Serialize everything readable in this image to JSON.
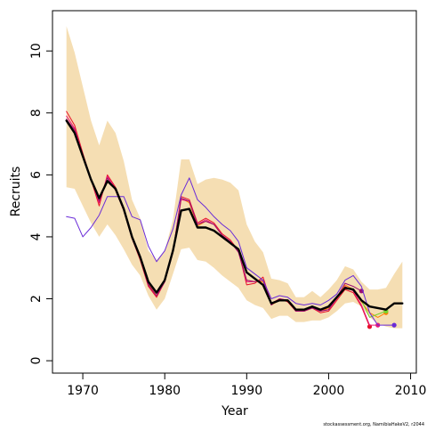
{
  "chart_data": {
    "type": "line",
    "title": "",
    "xlabel": "Year",
    "ylabel": "Recruits",
    "footnote": "stockassessment.org, NamibiaHakeV2, r2044",
    "xlim": [
      1966.3,
      2010.7
    ],
    "ylim": [
      -0.4,
      11.3
    ],
    "x_ticks": [
      1970,
      1980,
      1990,
      2000,
      2010
    ],
    "y_ticks": [
      0,
      2,
      4,
      6,
      8,
      10
    ],
    "grid": false,
    "legend": "none",
    "colors": {
      "band": "#f5deb3",
      "estimate": "#000000",
      "retro_red": "#e8102a",
      "retro_orange": "#ff7f00",
      "retro_purple": "#7f0dc9",
      "retro_green": "#76d22e",
      "retro_pink": "#e8197a",
      "retro_darkmagenta": "#9b0e72",
      "retro_violet": "#6a2bd8"
    },
    "band": {
      "x": [
        1968,
        1969,
        1970,
        1971,
        1972,
        1973,
        1974,
        1975,
        1976,
        1977,
        1978,
        1979,
        1980,
        1981,
        1982,
        1983,
        1984,
        1985,
        1986,
        1987,
        1988,
        1989,
        1990,
        1991,
        1992,
        1993,
        1994,
        1995,
        1996,
        1997,
        1998,
        1999,
        2000,
        2001,
        2002,
        2003,
        2004,
        2005,
        2006,
        2007,
        2008,
        2009
      ],
      "lower": [
        5.6,
        5.55,
        5.0,
        4.45,
        4.0,
        4.4,
        4.05,
        3.6,
        3.1,
        2.75,
        2.1,
        1.65,
        2.0,
        2.8,
        3.6,
        3.65,
        3.25,
        3.2,
        3.0,
        2.75,
        2.55,
        2.35,
        1.95,
        1.8,
        1.7,
        1.35,
        1.45,
        1.45,
        1.25,
        1.25,
        1.3,
        1.3,
        1.4,
        1.6,
        1.85,
        1.9,
        1.75,
        1.4,
        1.2,
        1.1,
        1.05,
        1.05
      ],
      "upper": [
        10.8,
        9.95,
        8.85,
        7.75,
        6.95,
        7.75,
        7.35,
        6.45,
        5.2,
        4.6,
        3.55,
        3.25,
        3.55,
        4.55,
        6.5,
        6.5,
        5.7,
        5.85,
        5.9,
        5.85,
        5.75,
        5.5,
        4.4,
        3.85,
        3.5,
        2.65,
        2.6,
        2.5,
        2.05,
        2.05,
        2.25,
        2.05,
        2.3,
        2.6,
        3.05,
        2.95,
        2.55,
        2.3,
        2.3,
        2.35,
        2.8,
        3.2
      ]
    },
    "series": [
      {
        "color": "#000000",
        "width": 2.4,
        "end_point": false,
        "x": [
          1968,
          1969,
          1970,
          1971,
          1972,
          1973,
          1974,
          1975,
          1976,
          1977,
          1978,
          1979,
          1980,
          1981,
          1982,
          1983,
          1984,
          1985,
          1986,
          1987,
          1988,
          1989,
          1990,
          1991,
          1992,
          1993,
          1994,
          1995,
          1996,
          1997,
          1998,
          1999,
          2000,
          2001,
          2002,
          2003,
          2004,
          2005,
          2006,
          2007,
          2008,
          2009
        ],
        "y": [
          7.75,
          7.35,
          6.6,
          5.85,
          5.25,
          5.8,
          5.55,
          4.9,
          4.0,
          3.35,
          2.55,
          2.2,
          2.6,
          3.55,
          4.85,
          4.9,
          4.3,
          4.3,
          4.2,
          4.0,
          3.8,
          3.6,
          2.85,
          2.65,
          2.45,
          1.85,
          1.95,
          1.95,
          1.65,
          1.65,
          1.75,
          1.65,
          1.75,
          2.05,
          2.35,
          2.3,
          1.95,
          1.75,
          1.7,
          1.65,
          1.85,
          1.85
        ]
      },
      {
        "color": "#e8102a",
        "width": 1,
        "end_point": true,
        "x": [
          1968,
          1969,
          1970,
          1971,
          1972,
          1973,
          1974,
          1975,
          1976,
          1977,
          1978,
          1979,
          1980,
          1981,
          1982,
          1983,
          1984,
          1985,
          1986,
          1987,
          1988,
          1989,
          1990,
          1991,
          1992,
          1993,
          1994,
          1995,
          1996,
          1997,
          1998,
          1999,
          2000,
          2001,
          2002,
          2003,
          2004,
          2005
        ],
        "y": [
          8.05,
          7.6,
          6.7,
          5.85,
          5.0,
          6.0,
          5.6,
          4.85,
          3.95,
          3.25,
          2.4,
          2.05,
          2.55,
          3.5,
          5.3,
          5.2,
          4.45,
          4.6,
          4.45,
          4.1,
          3.9,
          3.55,
          2.45,
          2.5,
          2.7,
          1.85,
          2.0,
          1.9,
          1.6,
          1.6,
          1.7,
          1.55,
          1.6,
          1.95,
          2.3,
          2.2,
          1.75,
          1.1
        ]
      },
      {
        "color": "#ff7f00",
        "width": 1,
        "end_point": true,
        "x": [
          1968,
          1969,
          1970,
          1971,
          1972,
          1973,
          1974,
          1975,
          1976,
          1977,
          1978,
          1979,
          1980,
          1981,
          1982,
          1983,
          1984,
          1985,
          1986,
          1987,
          1988,
          1989,
          1990,
          1991,
          1992,
          1993,
          1994,
          1995,
          1996,
          1997,
          1998,
          1999,
          2000,
          2001,
          2002,
          2003,
          2004,
          2005,
          2006,
          2007
        ],
        "y": [
          7.75,
          7.4,
          6.6,
          5.85,
          5.2,
          5.9,
          5.5,
          4.85,
          3.95,
          3.3,
          2.5,
          2.1,
          2.6,
          3.5,
          5.25,
          5.1,
          4.35,
          4.5,
          4.4,
          4.05,
          3.85,
          3.55,
          2.6,
          2.55,
          2.55,
          1.8,
          1.95,
          1.95,
          1.6,
          1.6,
          1.7,
          1.6,
          1.7,
          2.0,
          2.45,
          2.3,
          1.9,
          1.55,
          1.4,
          1.55
        ]
      },
      {
        "color": "#76d22e",
        "width": 1,
        "end_point": true,
        "x": [
          2003,
          2004,
          2005,
          2006,
          2007
        ],
        "y": [
          2.3,
          1.95,
          1.4,
          1.5,
          1.6
        ]
      },
      {
        "color": "#e8197a",
        "width": 1,
        "end_point": true,
        "x": [
          1968,
          1969,
          1970,
          1971,
          1972,
          1973,
          1974,
          1975,
          1976,
          1977,
          1978,
          1979,
          1980,
          1981,
          1982,
          1983,
          1984,
          1985,
          1986,
          1987,
          1988,
          1989,
          1990,
          1991,
          1992,
          1993,
          1994,
          1995,
          1996,
          1997,
          1998,
          1999,
          2000,
          2001,
          2002,
          2003,
          2004,
          2005,
          2006
        ],
        "y": [
          7.9,
          7.5,
          6.65,
          5.85,
          5.1,
          5.95,
          5.55,
          4.85,
          3.95,
          3.3,
          2.45,
          2.1,
          2.55,
          3.5,
          5.2,
          5.15,
          4.4,
          4.55,
          4.4,
          4.05,
          3.85,
          3.5,
          2.55,
          2.55,
          2.6,
          1.8,
          2.0,
          1.95,
          1.6,
          1.6,
          1.7,
          1.6,
          1.65,
          2.0,
          2.4,
          2.25,
          1.8,
          1.15,
          1.15
        ]
      },
      {
        "color": "#9b0e72",
        "width": 1,
        "end_point": true,
        "x": [
          1968,
          1969,
          1970,
          1971,
          1972,
          1973,
          1974,
          1975,
          1976,
          1977,
          1978,
          1979,
          1980,
          1981,
          1982,
          1983,
          1984,
          1985,
          1986,
          1987,
          1988,
          1989,
          1990,
          1991,
          1992,
          1993,
          1994,
          1995,
          1996,
          1997,
          1998,
          1999,
          2000,
          2001,
          2002,
          2003,
          2004
        ],
        "y": [
          7.8,
          7.45,
          6.6,
          5.85,
          5.15,
          5.9,
          5.5,
          4.85,
          3.95,
          3.3,
          2.45,
          2.1,
          2.55,
          3.5,
          5.25,
          5.15,
          4.4,
          4.5,
          4.4,
          4.05,
          3.85,
          3.5,
          2.6,
          2.55,
          2.6,
          1.8,
          2.0,
          1.95,
          1.6,
          1.6,
          1.7,
          1.6,
          1.65,
          2.05,
          2.5,
          2.4,
          2.25
        ]
      },
      {
        "color": "#6a2bd8",
        "width": 1,
        "end_point": true,
        "x": [
          1968,
          1969,
          1970,
          1971,
          1972,
          1973,
          1974,
          1975,
          1976,
          1977,
          1978,
          1979,
          1980,
          1981,
          1982,
          1983,
          1984,
          1985,
          1986,
          1987,
          1988,
          1989,
          1990,
          1991,
          1992,
          1993,
          1994,
          1995,
          1996,
          1997,
          1998,
          1999,
          2000,
          2001,
          2002,
          2003,
          2004,
          2005,
          2006,
          2007,
          2008
        ],
        "y": [
          4.65,
          4.6,
          4.0,
          4.3,
          4.7,
          5.3,
          5.3,
          5.3,
          4.65,
          4.55,
          3.7,
          3.2,
          3.55,
          4.25,
          5.35,
          5.9,
          5.2,
          4.95,
          4.65,
          4.4,
          4.2,
          3.85,
          3.0,
          2.8,
          2.6,
          2.0,
          2.1,
          2.05,
          1.85,
          1.8,
          1.85,
          1.8,
          1.95,
          2.15,
          2.6,
          2.75,
          2.4,
          1.55,
          1.15,
          1.15,
          1.15
        ]
      }
    ]
  }
}
